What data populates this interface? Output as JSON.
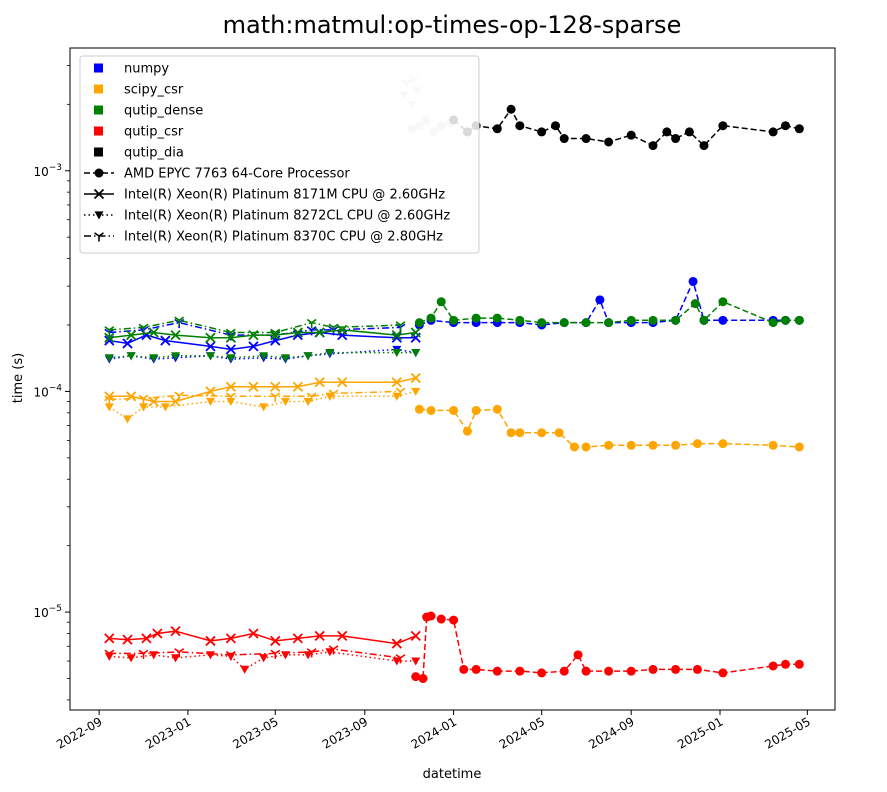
{
  "chart_data": {
    "type": "line",
    "title": "math:matmul:op-times-op-128-sparse",
    "xlabel": "datetime",
    "ylabel": "time (s)",
    "y_scale": "log",
    "x_axis": "date",
    "xlim": [
      "2022-07-23",
      "2025-06-08"
    ],
    "ylim": [
      3.6e-06,
      0.0036
    ],
    "x_ticks": [
      {
        "date": "2022-09-01",
        "label": "2022-09"
      },
      {
        "date": "2023-01-01",
        "label": "2023-01"
      },
      {
        "date": "2023-05-01",
        "label": "2023-05"
      },
      {
        "date": "2023-09-01",
        "label": "2023-09"
      },
      {
        "date": "2024-01-01",
        "label": "2024-01"
      },
      {
        "date": "2024-05-01",
        "label": "2024-05"
      },
      {
        "date": "2024-09-01",
        "label": "2024-09"
      },
      {
        "date": "2025-01-01",
        "label": "2025-01"
      },
      {
        "date": "2025-05-01",
        "label": "2025-05"
      }
    ],
    "y_ticks": [
      {
        "value": 1e-05,
        "base": "10",
        "exp": "−5"
      },
      {
        "value": 0.0001,
        "base": "10",
        "exp": "−4"
      },
      {
        "value": 0.001,
        "base": "10",
        "exp": "−3"
      }
    ],
    "grid": false,
    "legend": {
      "placement": "top-left",
      "colors": [
        {
          "name": "numpy",
          "color": "#0000ff"
        },
        {
          "name": "scipy_csr",
          "color": "#ffa500"
        },
        {
          "name": "qutip_dense",
          "color": "#008000"
        },
        {
          "name": "qutip_csr",
          "color": "#ff0000"
        },
        {
          "name": "qutip_dia",
          "color": "#000000"
        }
      ],
      "cpus": [
        {
          "name": "AMD EPYC 7763 64-Core Processor",
          "marker": "circle",
          "dash": "dashed"
        },
        {
          "name": "Intel(R) Xeon(R) Platinum 8171M CPU @ 2.60GHz",
          "marker": "x",
          "dash": "solid"
        },
        {
          "name": "Intel(R) Xeon(R) Platinum 8272CL CPU @ 2.60GHz",
          "marker": "triangle-down",
          "dash": "dotted"
        },
        {
          "name": "Intel(R) Xeon(R) Platinum 8370C CPU @ 2.80GHz",
          "marker": "tri-down",
          "dash": "dashdot"
        }
      ]
    },
    "series": [
      {
        "library": "numpy",
        "color": "#0000ff",
        "cpu": "Intel(R) Xeon(R) Platinum 8171M CPU @ 2.60GHz",
        "marker": "x",
        "dash": "solid",
        "x": [
          "2022-09-15",
          "2022-10-10",
          "2022-11-05",
          "2022-12-01",
          "2023-02-01",
          "2023-03-01",
          "2023-04-01",
          "2023-05-01",
          "2023-06-01",
          "2023-07-01",
          "2023-08-01",
          "2023-10-15",
          "2023-11-10"
        ],
        "y": [
          0.00017,
          0.000165,
          0.00018,
          0.00017,
          0.00016,
          0.000155,
          0.00016,
          0.00017,
          0.00018,
          0.000185,
          0.00018,
          0.000175,
          0.000175
        ]
      },
      {
        "library": "numpy",
        "color": "#0000ff",
        "cpu": "Intel(R) Xeon(R) Platinum 8272CL CPU @ 2.60GHz",
        "marker": "triangle-down",
        "dash": "dotted",
        "x": [
          "2022-09-15",
          "2022-10-15",
          "2022-11-15",
          "2022-12-15",
          "2023-02-01",
          "2023-03-01",
          "2023-04-15",
          "2023-05-15",
          "2023-06-15",
          "2023-07-15",
          "2023-10-15",
          "2023-11-10"
        ],
        "y": [
          0.00014,
          0.000145,
          0.00014,
          0.000142,
          0.000145,
          0.00014,
          0.000142,
          0.00014,
          0.000145,
          0.000148,
          0.000155,
          0.00015
        ]
      },
      {
        "library": "numpy",
        "color": "#0000ff",
        "cpu": "Intel(R) Xeon(R) Platinum 8370C CPU @ 2.80GHz",
        "marker": "tri-down",
        "dash": "dashdot",
        "x": [
          "2022-09-15",
          "2022-11-01",
          "2022-12-20",
          "2023-03-01",
          "2023-05-01",
          "2023-06-20",
          "2023-07-20",
          "2023-10-20"
        ],
        "y": [
          0.000185,
          0.00019,
          0.000205,
          0.00018,
          0.00018,
          0.00019,
          0.00019,
          0.000195
        ]
      },
      {
        "library": "numpy",
        "color": "#0000ff",
        "cpu": "AMD EPYC 7763 64-Core Processor",
        "marker": "circle",
        "dash": "dashed",
        "x": [
          "2023-11-15",
          "2023-12-01",
          "2024-01-01",
          "2024-02-01",
          "2024-03-01",
          "2024-04-01",
          "2024-05-01",
          "2024-06-01",
          "2024-07-01",
          "2024-07-20",
          "2024-08-01",
          "2024-09-01",
          "2024-10-01",
          "2024-11-01",
          "2024-11-25",
          "2024-12-10",
          "2025-01-05",
          "2025-03-15",
          "2025-04-01",
          "2025-04-20"
        ],
        "y": [
          0.0002,
          0.00021,
          0.000205,
          0.000205,
          0.000205,
          0.000205,
          0.0002,
          0.000205,
          0.000205,
          0.00026,
          0.000205,
          0.000205,
          0.000205,
          0.00021,
          0.000315,
          0.00021,
          0.00021,
          0.00021,
          0.00021,
          0.00021
        ]
      },
      {
        "library": "scipy_csr",
        "color": "#ffa500",
        "cpu": "Intel(R) Xeon(R) Platinum 8171M CPU @ 2.60GHz",
        "marker": "x",
        "dash": "solid",
        "x": [
          "2022-09-15",
          "2022-10-15",
          "2022-11-15",
          "2022-12-15",
          "2023-02-01",
          "2023-03-01",
          "2023-04-01",
          "2023-05-01",
          "2023-06-01",
          "2023-07-01",
          "2023-08-01",
          "2023-10-15",
          "2023-11-10"
        ],
        "y": [
          9.5e-05,
          9.5e-05,
          9e-05,
          9e-05,
          0.0001,
          0.000105,
          0.000105,
          0.000105,
          0.000105,
          0.00011,
          0.00011,
          0.00011,
          0.000115
        ]
      },
      {
        "library": "scipy_csr",
        "color": "#ffa500",
        "cpu": "Intel(R) Xeon(R) Platinum 8272CL CPU @ 2.60GHz",
        "marker": "triangle-down",
        "dash": "dotted",
        "x": [
          "2022-09-15",
          "2022-10-10",
          "2022-11-01",
          "2022-12-01",
          "2023-02-01",
          "2023-03-01",
          "2023-04-15",
          "2023-05-15",
          "2023-06-15",
          "2023-07-15",
          "2023-10-15",
          "2023-11-10"
        ],
        "y": [
          8.5e-05,
          7.5e-05,
          8.5e-05,
          8.5e-05,
          9e-05,
          9e-05,
          8.5e-05,
          9e-05,
          9e-05,
          9.5e-05,
          9.5e-05,
          0.0001
        ]
      },
      {
        "library": "scipy_csr",
        "color": "#ffa500",
        "cpu": "Intel(R) Xeon(R) Platinum 8370C CPU @ 2.80GHz",
        "marker": "tri-down",
        "dash": "dashdot",
        "x": [
          "2022-09-15",
          "2022-11-01",
          "2022-12-20",
          "2023-03-01",
          "2023-05-01",
          "2023-06-20",
          "2023-07-20",
          "2023-10-20"
        ],
        "y": [
          9.2e-05,
          9.3e-05,
          9.6e-05,
          9.5e-05,
          9.5e-05,
          9.5e-05,
          9.8e-05,
          0.0001
        ]
      },
      {
        "library": "scipy_csr",
        "color": "#ffa500",
        "cpu": "AMD EPYC 7763 64-Core Processor",
        "marker": "circle",
        "dash": "dashed",
        "x": [
          "2023-11-15",
          "2023-12-01",
          "2024-01-01",
          "2024-01-20",
          "2024-02-01",
          "2024-03-01",
          "2024-03-20",
          "2024-04-01",
          "2024-05-01",
          "2024-05-25",
          "2024-06-15",
          "2024-07-01",
          "2024-08-01",
          "2024-09-01",
          "2024-10-01",
          "2024-11-01",
          "2024-12-01",
          "2025-01-05",
          "2025-03-15",
          "2025-04-20"
        ],
        "y": [
          8.3e-05,
          8.2e-05,
          8.2e-05,
          6.6e-05,
          8.2e-05,
          8.3e-05,
          6.5e-05,
          6.5e-05,
          6.5e-05,
          6.5e-05,
          5.6e-05,
          5.6e-05,
          5.7e-05,
          5.7e-05,
          5.7e-05,
          5.7e-05,
          5.8e-05,
          5.8e-05,
          5.7e-05,
          5.6e-05
        ]
      },
      {
        "library": "qutip_dense",
        "color": "#008000",
        "cpu": "Intel(R) Xeon(R) Platinum 8171M CPU @ 2.60GHz",
        "marker": "x",
        "dash": "solid",
        "x": [
          "2022-09-15",
          "2022-10-15",
          "2022-11-15",
          "2022-12-15",
          "2023-02-01",
          "2023-03-01",
          "2023-04-01",
          "2023-05-01",
          "2023-06-01",
          "2023-07-01",
          "2023-08-01",
          "2023-10-15",
          "2023-11-10"
        ],
        "y": [
          0.000175,
          0.00018,
          0.000185,
          0.00018,
          0.000175,
          0.000175,
          0.00018,
          0.00018,
          0.000185,
          0.000185,
          0.00019,
          0.00018,
          0.000185
        ]
      },
      {
        "library": "qutip_dense",
        "color": "#008000",
        "cpu": "Intel(R) Xeon(R) Platinum 8272CL CPU @ 2.60GHz",
        "marker": "triangle-down",
        "dash": "dotted",
        "x": [
          "2022-09-15",
          "2022-10-15",
          "2022-11-15",
          "2022-12-15",
          "2023-02-01",
          "2023-03-01",
          "2023-04-15",
          "2023-05-15",
          "2023-06-15",
          "2023-07-15",
          "2023-10-15",
          "2023-11-10"
        ],
        "y": [
          0.000142,
          0.000145,
          0.000142,
          0.000145,
          0.000145,
          0.000142,
          0.000145,
          0.000142,
          0.000145,
          0.00015,
          0.00015,
          0.00015
        ]
      },
      {
        "library": "qutip_dense",
        "color": "#008000",
        "cpu": "Intel(R) Xeon(R) Platinum 8370C CPU @ 2.80GHz",
        "marker": "tri-down",
        "dash": "dashdot",
        "x": [
          "2022-09-15",
          "2022-11-01",
          "2022-12-20",
          "2023-03-01",
          "2023-05-01",
          "2023-06-20",
          "2023-07-20",
          "2023-10-20"
        ],
        "y": [
          0.00019,
          0.000195,
          0.00021,
          0.000185,
          0.000185,
          0.000205,
          0.000195,
          0.0002
        ]
      },
      {
        "library": "qutip_dense",
        "color": "#008000",
        "cpu": "AMD EPYC 7763 64-Core Processor",
        "marker": "circle",
        "dash": "dashed",
        "x": [
          "2023-11-15",
          "2023-12-01",
          "2023-12-15",
          "2024-01-01",
          "2024-02-01",
          "2024-03-01",
          "2024-04-01",
          "2024-05-01",
          "2024-06-01",
          "2024-07-01",
          "2024-08-01",
          "2024-09-01",
          "2024-10-01",
          "2024-11-01",
          "2024-11-28",
          "2024-12-10",
          "2025-01-05",
          "2025-03-15",
          "2025-04-01",
          "2025-04-20"
        ],
        "y": [
          0.000205,
          0.000215,
          0.000255,
          0.00021,
          0.000215,
          0.000215,
          0.00021,
          0.000205,
          0.000205,
          0.000205,
          0.000205,
          0.00021,
          0.00021,
          0.00021,
          0.00025,
          0.00021,
          0.000255,
          0.000205,
          0.00021,
          0.00021
        ]
      },
      {
        "library": "qutip_csr",
        "color": "#ff0000",
        "cpu": "Intel(R) Xeon(R) Platinum 8171M CPU @ 2.60GHz",
        "marker": "x",
        "dash": "solid",
        "x": [
          "2022-09-15",
          "2022-10-10",
          "2022-11-05",
          "2022-11-20",
          "2022-12-15",
          "2023-02-01",
          "2023-03-01",
          "2023-04-01",
          "2023-05-01",
          "2023-06-01",
          "2023-07-01",
          "2023-08-01",
          "2023-10-15",
          "2023-11-10"
        ],
        "y": [
          7.6e-06,
          7.5e-06,
          7.6e-06,
          8e-06,
          8.2e-06,
          7.4e-06,
          7.6e-06,
          8e-06,
          7.4e-06,
          7.6e-06,
          7.8e-06,
          7.8e-06,
          7.2e-06,
          7.8e-06
        ]
      },
      {
        "library": "qutip_csr",
        "color": "#ff0000",
        "cpu": "Intel(R) Xeon(R) Platinum 8272CL CPU @ 2.60GHz",
        "marker": "triangle-down",
        "dash": "dotted",
        "x": [
          "2022-09-15",
          "2022-10-15",
          "2022-11-15",
          "2022-12-15",
          "2023-02-01",
          "2023-03-01",
          "2023-03-20",
          "2023-04-15",
          "2023-05-15",
          "2023-06-15",
          "2023-07-15",
          "2023-10-15",
          "2023-11-10"
        ],
        "y": [
          6.3e-06,
          6.2e-06,
          6.4e-06,
          6.2e-06,
          6.4e-06,
          6.3e-06,
          5.5e-06,
          6.2e-06,
          6.4e-06,
          6.4e-06,
          6.6e-06,
          6e-06,
          6e-06
        ]
      },
      {
        "library": "qutip_csr",
        "color": "#ff0000",
        "cpu": "Intel(R) Xeon(R) Platinum 8370C CPU @ 2.80GHz",
        "marker": "tri-down",
        "dash": "dashdot",
        "x": [
          "2022-09-15",
          "2022-11-01",
          "2022-12-20",
          "2023-03-01",
          "2023-05-01",
          "2023-06-20",
          "2023-07-20",
          "2023-10-20"
        ],
        "y": [
          6.5e-06,
          6.5e-06,
          6.6e-06,
          6.4e-06,
          6.5e-06,
          6.6e-06,
          6.8e-06,
          6.2e-06
        ]
      },
      {
        "library": "qutip_csr",
        "color": "#ff0000",
        "cpu": "AMD EPYC 7763 64-Core Processor",
        "marker": "circle",
        "dash": "dashed",
        "x": [
          "2023-11-10",
          "2023-11-20",
          "2023-11-25",
          "2023-12-01",
          "2023-12-15",
          "2024-01-01",
          "2024-01-15",
          "2024-02-01",
          "2024-03-01",
          "2024-04-01",
          "2024-05-01",
          "2024-06-01",
          "2024-06-20",
          "2024-07-01",
          "2024-08-01",
          "2024-09-01",
          "2024-10-01",
          "2024-11-01",
          "2024-12-01",
          "2025-01-05",
          "2025-03-15",
          "2025-04-01",
          "2025-04-20"
        ],
        "y": [
          5.1e-06,
          5e-06,
          9.5e-06,
          9.6e-06,
          9.3e-06,
          9.2e-06,
          5.5e-06,
          5.5e-06,
          5.4e-06,
          5.4e-06,
          5.3e-06,
          5.4e-06,
          6.4e-06,
          5.4e-06,
          5.4e-06,
          5.4e-06,
          5.5e-06,
          5.5e-06,
          5.5e-06,
          5.3e-06,
          5.7e-06,
          5.8e-06,
          5.8e-06
        ]
      },
      {
        "library": "qutip_dia",
        "color": "#cccccc",
        "cpu": "Intel(R) Xeon(R) Platinum 8272CL CPU @ 2.60GHz",
        "marker": "triangle-down",
        "dash": "dotted",
        "x": [
          "2023-10-25",
          "2023-11-05",
          "2023-11-12"
        ],
        "y": [
          0.0022,
          0.002,
          0.0023
        ]
      },
      {
        "library": "qutip_dia",
        "color": "#cccccc",
        "cpu": "Intel(R) Xeon(R) Platinum 8370C CPU @ 2.80GHz",
        "marker": "tri-down",
        "dash": "dashdot",
        "x": [
          "2023-10-28",
          "2023-11-08"
        ],
        "y": [
          0.0025,
          0.0026
        ]
      },
      {
        "library": "qutip_dia",
        "color": "#cccccc",
        "cpu": "AMD EPYC 7763 64-Core Processor",
        "marker": "circle",
        "dash": "dashed",
        "x": [
          "2023-11-05",
          "2023-11-15",
          "2023-11-25",
          "2023-12-05",
          "2023-12-15",
          "2023-12-28"
        ],
        "y": [
          0.00155,
          0.0016,
          0.0017,
          0.0015,
          0.0016,
          0.00165
        ]
      },
      {
        "library": "qutip_dia",
        "color": "#000000",
        "cpu": "AMD EPYC 7763 64-Core Processor",
        "marker": "circle",
        "dash": "dashed",
        "x": [
          "2024-01-01",
          "2024-01-20",
          "2024-02-01",
          "2024-03-01",
          "2024-03-20",
          "2024-04-01",
          "2024-05-01",
          "2024-05-20",
          "2024-06-01",
          "2024-07-01",
          "2024-08-01",
          "2024-09-01",
          "2024-10-01",
          "2024-10-20",
          "2024-11-01",
          "2024-11-20",
          "2024-12-10",
          "2025-01-05",
          "2025-03-15",
          "2025-04-01",
          "2025-04-20"
        ],
        "y": [
          0.0017,
          0.0015,
          0.0016,
          0.00155,
          0.0019,
          0.0016,
          0.0015,
          0.0016,
          0.0014,
          0.0014,
          0.00135,
          0.00145,
          0.0013,
          0.0015,
          0.0014,
          0.0015,
          0.0013,
          0.0016,
          0.0015,
          0.0016,
          0.00155
        ]
      }
    ]
  }
}
